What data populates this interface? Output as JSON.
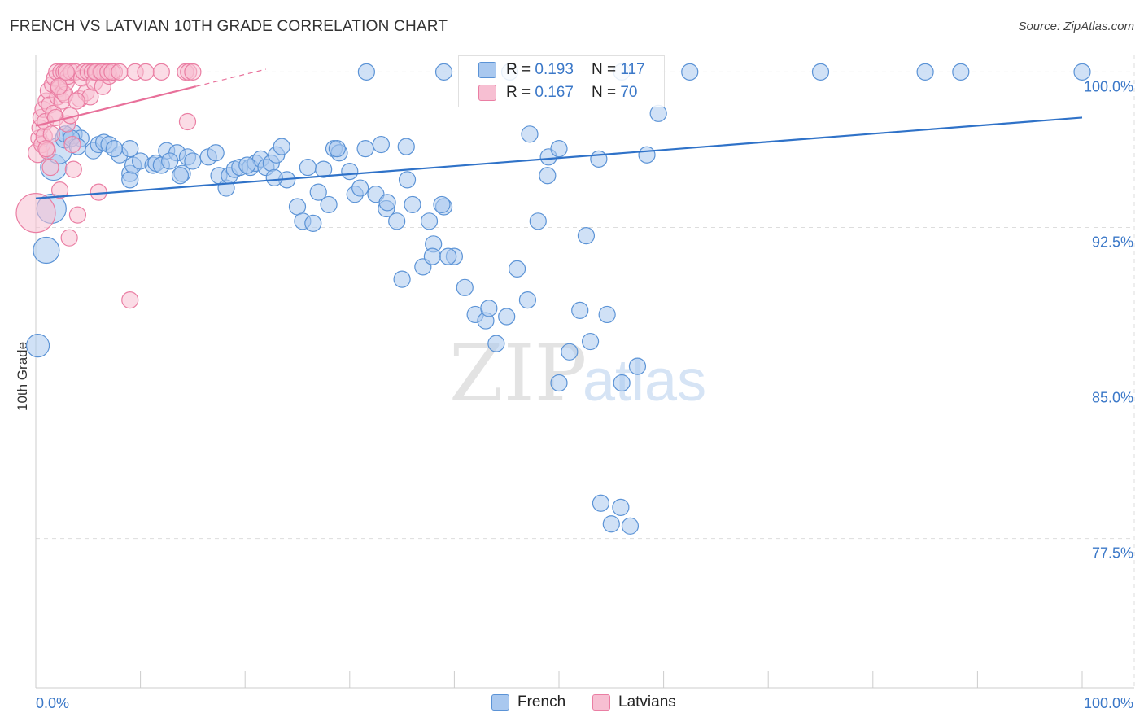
{
  "header": {
    "title": "FRENCH VS LATVIAN 10TH GRADE CORRELATION CHART",
    "source": "Source: ZipAtlas.com"
  },
  "watermark": {
    "zip": "ZIP",
    "atlas": "atlas"
  },
  "legend": {
    "rows": [
      {
        "r_label": "R =",
        "r_value": "0.193",
        "n_label": "N =",
        "n_value": "117"
      },
      {
        "r_label": "R =",
        "r_value": "0.167",
        "n_label": "N =",
        "n_value": "70"
      }
    ],
    "bottom": [
      "French",
      "Latvians"
    ]
  },
  "colors": {
    "french_fill": "#a9c8ef",
    "french_stroke": "#5b93d6",
    "french_line": "#2f72c8",
    "latvian_fill": "#f7bfd2",
    "latvian_stroke": "#ea7ea3",
    "latvian_line": "#e8709a",
    "tick_label": "#3b78c8",
    "grid": "#dddddd"
  },
  "chart_data": {
    "type": "scatter",
    "title": "FRENCH VS LATVIAN 10TH GRADE CORRELATION CHART",
    "ylabel": "10th Grade",
    "xlabel": "",
    "xlim": [
      0,
      100
    ],
    "ylim": [
      70.3,
      100.8
    ],
    "x_tick_labels": [
      {
        "value": 0,
        "label": "0.0%"
      },
      {
        "value": 100,
        "label": "100.0%"
      }
    ],
    "y_tick_labels": [
      {
        "value": 100.0,
        "label": "100.0%"
      },
      {
        "value": 92.5,
        "label": "92.5%"
      },
      {
        "value": 85.0,
        "label": "85.0%"
      },
      {
        "value": 77.5,
        "label": "77.5%"
      }
    ],
    "grid": true,
    "series": [
      {
        "name": "French",
        "R": 0.193,
        "N": 117,
        "trend": {
          "x": [
            0,
            100
          ],
          "y": [
            93.9,
            97.8
          ]
        },
        "points": [
          [
            0.2,
            86.8,
            14
          ],
          [
            1.0,
            91.4,
            16
          ],
          [
            1.5,
            93.4,
            18
          ],
          [
            1.7,
            95.4,
            16
          ],
          [
            2.2,
            96.2,
            16
          ],
          [
            2.8,
            96.8,
            12
          ],
          [
            3.5,
            97.0,
            12
          ],
          [
            4.3,
            96.8,
            10
          ],
          [
            5.5,
            96.2,
            10
          ],
          [
            6.0,
            96.5,
            10
          ],
          [
            6.5,
            96.6,
            10
          ],
          [
            7.0,
            96.5,
            10
          ],
          [
            8.0,
            96.0,
            10
          ],
          [
            9.0,
            96.3,
            10
          ],
          [
            9.0,
            95.1,
            10
          ],
          [
            9.0,
            94.8,
            10
          ],
          [
            9.3,
            95.5,
            10
          ],
          [
            10.0,
            95.7,
            10
          ],
          [
            11.2,
            95.5,
            10
          ],
          [
            11.5,
            95.6,
            10
          ],
          [
            12.0,
            95.5,
            10
          ],
          [
            12.5,
            96.2,
            10
          ],
          [
            13.5,
            96.1,
            10
          ],
          [
            14.0,
            95.1,
            10
          ],
          [
            14.5,
            95.9,
            10
          ],
          [
            15.0,
            95.7,
            10
          ],
          [
            16.5,
            95.9,
            10
          ],
          [
            17.2,
            96.1,
            10
          ],
          [
            17.5,
            95.0,
            10
          ],
          [
            18.2,
            94.4,
            10
          ],
          [
            18.5,
            95.0,
            10
          ],
          [
            19.0,
            95.3,
            10
          ],
          [
            19.5,
            95.4,
            10
          ],
          [
            20.5,
            95.4,
            10
          ],
          [
            21.0,
            95.6,
            10
          ],
          [
            21.5,
            95.8,
            10
          ],
          [
            22.0,
            95.4,
            10
          ],
          [
            22.5,
            95.6,
            10
          ],
          [
            23.0,
            96.0,
            10
          ],
          [
            23.5,
            96.4,
            10
          ],
          [
            24.0,
            94.8,
            10
          ],
          [
            25.0,
            93.5,
            10
          ],
          [
            25.5,
            92.8,
            10
          ],
          [
            26.0,
            95.4,
            10
          ],
          [
            27.0,
            94.2,
            10
          ],
          [
            27.5,
            95.3,
            10
          ],
          [
            28.0,
            93.6,
            10
          ],
          [
            28.5,
            96.3,
            10
          ],
          [
            29.0,
            96.1,
            10
          ],
          [
            30.0,
            95.2,
            10
          ],
          [
            30.5,
            94.1,
            10
          ],
          [
            31.0,
            94.4,
            10
          ],
          [
            31.5,
            96.3,
            10
          ],
          [
            32.5,
            94.1,
            10
          ],
          [
            33.0,
            96.5,
            10
          ],
          [
            33.5,
            93.4,
            10
          ],
          [
            34.5,
            92.8,
            10
          ],
          [
            35.0,
            90.0,
            10
          ],
          [
            35.5,
            94.8,
            10
          ],
          [
            36.0,
            93.6,
            10
          ],
          [
            37.0,
            90.6,
            10
          ],
          [
            38.0,
            91.7,
            10
          ],
          [
            39.0,
            93.5,
            10
          ],
          [
            40.0,
            91.1,
            10
          ],
          [
            41.0,
            89.6,
            10
          ],
          [
            42.0,
            88.3,
            10
          ],
          [
            43.0,
            88.0,
            10
          ],
          [
            44.0,
            86.9,
            10
          ],
          [
            45.0,
            88.2,
            10
          ],
          [
            46.0,
            90.5,
            10
          ],
          [
            47.0,
            89.0,
            10
          ],
          [
            48.0,
            92.8,
            10
          ],
          [
            49.0,
            95.9,
            10
          ],
          [
            50.0,
            85.0,
            10
          ],
          [
            51.0,
            86.5,
            10
          ],
          [
            52.0,
            88.5,
            10
          ],
          [
            53.0,
            87.0,
            10
          ],
          [
            54.0,
            79.2,
            10
          ],
          [
            55.0,
            78.2,
            10
          ],
          [
            56.0,
            85.0,
            10
          ],
          [
            2.8,
            97.0,
            10
          ],
          [
            3.4,
            96.8,
            10
          ],
          [
            4.0,
            96.4,
            10
          ],
          [
            7.5,
            96.3,
            10
          ],
          [
            12.8,
            95.7,
            10
          ],
          [
            13.8,
            95.0,
            10
          ],
          [
            20.2,
            95.5,
            10
          ],
          [
            22.8,
            94.9,
            10
          ],
          [
            26.5,
            92.7,
            10
          ],
          [
            28.8,
            96.3,
            10
          ],
          [
            33.6,
            93.7,
            10
          ],
          [
            35.4,
            96.4,
            10
          ],
          [
            37.6,
            92.8,
            10
          ],
          [
            37.9,
            91.1,
            10
          ],
          [
            38.8,
            93.6,
            10
          ],
          [
            39.4,
            91.1,
            10
          ],
          [
            43.3,
            88.6,
            10
          ],
          [
            47.2,
            97.0,
            10
          ],
          [
            48.9,
            95.0,
            10
          ],
          [
            50.0,
            96.3,
            10
          ],
          [
            52.6,
            92.1,
            10
          ],
          [
            53.8,
            95.8,
            10
          ],
          [
            54.6,
            88.3,
            10
          ],
          [
            55.9,
            79.0,
            10
          ],
          [
            56.8,
            78.1,
            10
          ],
          [
            57.5,
            85.8,
            10
          ],
          [
            58.4,
            96.0,
            10
          ],
          [
            59.5,
            98.0,
            10
          ],
          [
            31.6,
            100.0,
            10
          ],
          [
            39.0,
            100.0,
            10
          ],
          [
            45.3,
            100.0,
            10
          ],
          [
            56.0,
            100.0,
            10
          ],
          [
            62.5,
            100.0,
            10
          ],
          [
            75.0,
            100.0,
            10
          ],
          [
            88.4,
            100.0,
            10
          ],
          [
            100.0,
            100.0,
            10
          ],
          [
            85.0,
            100.0,
            10
          ]
        ]
      },
      {
        "name": "Latvians",
        "R": 0.167,
        "N": 70,
        "trend": {
          "x": [
            0,
            15.3
          ],
          "y": [
            97.4,
            99.3
          ]
        },
        "points": [
          [
            0.0,
            93.2,
            24
          ],
          [
            0.2,
            96.1,
            12
          ],
          [
            0.3,
            96.8,
            10
          ],
          [
            0.4,
            97.3,
            10
          ],
          [
            0.5,
            97.8,
            10
          ],
          [
            0.6,
            96.5,
            10
          ],
          [
            0.7,
            98.2,
            10
          ],
          [
            0.8,
            96.9,
            10
          ],
          [
            0.9,
            97.6,
            10
          ],
          [
            1.0,
            98.6,
            10
          ],
          [
            1.1,
            96.2,
            10
          ],
          [
            1.2,
            99.1,
            10
          ],
          [
            1.3,
            98.4,
            10
          ],
          [
            1.4,
            95.4,
            10
          ],
          [
            1.5,
            97.0,
            10
          ],
          [
            1.6,
            99.4,
            10
          ],
          [
            1.7,
            98.0,
            10
          ],
          [
            1.8,
            99.7,
            10
          ],
          [
            1.9,
            97.8,
            10
          ],
          [
            2.0,
            100.0,
            10
          ],
          [
            2.1,
            98.8,
            10
          ],
          [
            2.2,
            99.2,
            10
          ],
          [
            2.3,
            94.3,
            10
          ],
          [
            2.4,
            100.0,
            10
          ],
          [
            2.5,
            98.6,
            10
          ],
          [
            2.6,
            99.0,
            10
          ],
          [
            2.7,
            100.0,
            10
          ],
          [
            2.8,
            98.9,
            10
          ],
          [
            2.9,
            99.5,
            10
          ],
          [
            3.0,
            97.5,
            10
          ],
          [
            3.1,
            99.8,
            10
          ],
          [
            3.2,
            92.0,
            10
          ],
          [
            3.3,
            97.9,
            10
          ],
          [
            3.4,
            100.0,
            10
          ],
          [
            3.5,
            96.5,
            10
          ],
          [
            3.6,
            95.3,
            10
          ],
          [
            3.8,
            100.0,
            10
          ],
          [
            4.0,
            93.1,
            10
          ],
          [
            4.2,
            98.7,
            10
          ],
          [
            4.4,
            99.7,
            10
          ],
          [
            4.6,
            100.0,
            10
          ],
          [
            4.8,
            99.0,
            10
          ],
          [
            5.0,
            100.0,
            10
          ],
          [
            5.2,
            98.8,
            10
          ],
          [
            5.4,
            100.0,
            10
          ],
          [
            5.6,
            99.5,
            10
          ],
          [
            5.8,
            100.0,
            10
          ],
          [
            6.0,
            94.2,
            10
          ],
          [
            6.2,
            100.0,
            10
          ],
          [
            6.4,
            99.3,
            10
          ],
          [
            6.6,
            100.0,
            10
          ],
          [
            7.0,
            99.8,
            10
          ],
          [
            7.5,
            100.0,
            10
          ],
          [
            9.5,
            100.0,
            10
          ],
          [
            12.0,
            100.0,
            10
          ],
          [
            14.3,
            100.0,
            10
          ],
          [
            14.6,
            100.0,
            10
          ],
          [
            15.0,
            100.0,
            10
          ],
          [
            9.0,
            89.0,
            10
          ],
          [
            14.5,
            97.6,
            10
          ],
          [
            2.2,
            99.3,
            10
          ],
          [
            3.9,
            98.6,
            10
          ],
          [
            5.7,
            100.0,
            10
          ],
          [
            6.3,
            100.0,
            10
          ],
          [
            6.9,
            100.0,
            10
          ],
          [
            7.3,
            100.0,
            10
          ],
          [
            8.0,
            100.0,
            10
          ],
          [
            10.5,
            100.0,
            10
          ],
          [
            1.0,
            96.3,
            10
          ],
          [
            2.9,
            100.0,
            10
          ]
        ]
      }
    ]
  }
}
